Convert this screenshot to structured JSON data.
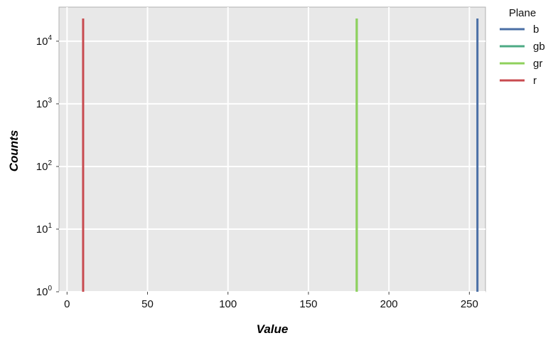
{
  "chart_data": {
    "type": "line",
    "xlabel": "Value",
    "ylabel": "Counts",
    "xlim": [
      -5,
      260
    ],
    "ylim": [
      1,
      35000
    ],
    "y_scale": "log",
    "x_ticks": [
      0,
      50,
      100,
      150,
      200,
      250
    ],
    "x_tick_labels": [
      "0",
      "50",
      "100",
      "150",
      "200",
      "250"
    ],
    "y_ticks": [
      1,
      10,
      100,
      1000,
      10000
    ],
    "y_tick_labels": [
      {
        "base": "10",
        "exp": "0"
      },
      {
        "base": "10",
        "exp": "1"
      },
      {
        "base": "10",
        "exp": "2"
      },
      {
        "base": "10",
        "exp": "3"
      },
      {
        "base": "10",
        "exp": "4"
      }
    ],
    "grid": true,
    "legend": {
      "title": "Plane",
      "position": "right-top"
    },
    "series": [
      {
        "name": "b",
        "color": "#4a6fa5",
        "x": [
          255,
          255
        ],
        "y": [
          1,
          23000
        ]
      },
      {
        "name": "gb",
        "color": "#4daa84",
        "x": [
          180,
          180
        ],
        "y": [
          1,
          23000
        ]
      },
      {
        "name": "gr",
        "color": "#8fd15c",
        "x": [
          180,
          180
        ],
        "y": [
          1,
          23000
        ]
      },
      {
        "name": "r",
        "color": "#c84b50",
        "x": [
          10,
          10
        ],
        "y": [
          1,
          23000
        ]
      }
    ]
  }
}
